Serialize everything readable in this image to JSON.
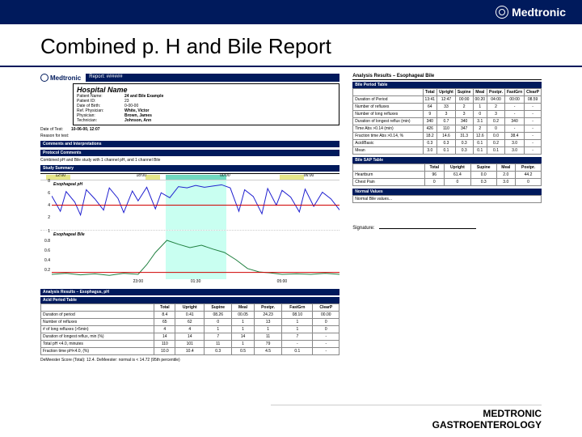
{
  "brand": "Medtronic",
  "page_title": "Combined p. H and Bile Report",
  "report_type": "Report: ######",
  "hospital_name": "Hospital Name",
  "patient": {
    "name_lbl": "Patient Name:",
    "name": "24 and Bile Example",
    "id_lbl": "Patient ID:",
    "id": "23",
    "dob_lbl": "Date of Birth:",
    "dob": "0-00-00",
    "ref_lbl": "Ref. Physician:",
    "ref": "White, Victor",
    "phys_lbl": "Physician:",
    "phys": "Brown, James",
    "tech_lbl": "Technician:",
    "tech": "Johnson, Ann"
  },
  "test_date_lbl": "Date of Test:",
  "reason_lbl": "Reason for test:",
  "test_date": "10-06-00, 12:07",
  "sections": {
    "comments": "Comments and Interpretations",
    "protocol": "Protocol Comments",
    "protocol_txt": "Combined pH and Bile study with 1 channel pH, and 1 channel Bile",
    "summary": "Study Summary",
    "analysis": "Analysis Results – Esophagus, pH"
  },
  "timeline": {
    "labels": [
      "12:00",
      "18:00",
      "00:00",
      "06:00"
    ],
    "positions_pct": [
      5,
      32,
      60,
      88
    ],
    "segments": [
      {
        "color": "#e6e68a",
        "left_pct": 2,
        "width_pct": 8
      },
      {
        "color": "#e6e68a",
        "left_pct": 35,
        "width_pct": 5
      },
      {
        "color": "#70d8c0",
        "left_pct": 42,
        "width_pct": 20
      },
      {
        "color": "#e6e68a",
        "left_pct": 80,
        "width_pct": 8
      }
    ]
  },
  "ph_chart": {
    "label": "Esophageal pH",
    "ylim": [
      0,
      8
    ],
    "yticks": [
      8,
      6,
      4,
      2
    ],
    "threshold_y": 4,
    "threshold_color": "#d00000",
    "line_color": "#2020d0",
    "highlight": {
      "left_pct": 42,
      "width_pct": 20
    },
    "points": [
      [
        0,
        5.5
      ],
      [
        3,
        3.0
      ],
      [
        5,
        6.2
      ],
      [
        8,
        4.5
      ],
      [
        10,
        2.4
      ],
      [
        12,
        6.5
      ],
      [
        15,
        5.0
      ],
      [
        18,
        3.2
      ],
      [
        20,
        6.8
      ],
      [
        23,
        5.1
      ],
      [
        25,
        2.8
      ],
      [
        28,
        6.3
      ],
      [
        30,
        4.7
      ],
      [
        33,
        6.9
      ],
      [
        36,
        3.4
      ],
      [
        38,
        6.0
      ],
      [
        41,
        5.2
      ],
      [
        44,
        7.0
      ],
      [
        47,
        6.8
      ],
      [
        50,
        7.2
      ],
      [
        53,
        6.9
      ],
      [
        56,
        7.1
      ],
      [
        59,
        7.3
      ],
      [
        62,
        6.8
      ],
      [
        65,
        3.0
      ],
      [
        67,
        6.5
      ],
      [
        70,
        5.4
      ],
      [
        73,
        2.6
      ],
      [
        75,
        6.7
      ],
      [
        78,
        4.0
      ],
      [
        80,
        6.4
      ],
      [
        83,
        5.3
      ],
      [
        86,
        2.9
      ],
      [
        88,
        6.6
      ],
      [
        91,
        3.8
      ],
      [
        94,
        6.1
      ],
      [
        97,
        5.0
      ],
      [
        100,
        3.2
      ]
    ]
  },
  "bile_chart": {
    "label": "Esophageal Bile",
    "ylim": [
      0,
      1
    ],
    "yticks": [
      1.0,
      0.8,
      0.6,
      0.4,
      0.2
    ],
    "threshold_y": 0.14,
    "threshold_color": "#d00000",
    "line_color": "#208040",
    "highlight": {
      "left_pct": 42,
      "width_pct": 20
    },
    "x_labels": [
      "23:00",
      "01:30",
      "05:00"
    ],
    "x_positions_pct": [
      30,
      50,
      80
    ],
    "points": [
      [
        0,
        0.1
      ],
      [
        5,
        0.12
      ],
      [
        10,
        0.09
      ],
      [
        15,
        0.11
      ],
      [
        20,
        0.08
      ],
      [
        25,
        0.12
      ],
      [
        30,
        0.1
      ],
      [
        33,
        0.3
      ],
      [
        36,
        0.55
      ],
      [
        40,
        0.8
      ],
      [
        44,
        0.72
      ],
      [
        48,
        0.65
      ],
      [
        52,
        0.7
      ],
      [
        56,
        0.62
      ],
      [
        60,
        0.55
      ],
      [
        64,
        0.4
      ],
      [
        68,
        0.22
      ],
      [
        72,
        0.15
      ],
      [
        76,
        0.13
      ],
      [
        80,
        0.1
      ],
      [
        85,
        0.11
      ],
      [
        90,
        0.1
      ],
      [
        95,
        0.12
      ],
      [
        100,
        0.1
      ]
    ]
  },
  "acid_table": {
    "title": "Acid Period Table",
    "cols": [
      "",
      "Total",
      "Upright",
      "Supine",
      "Meal",
      "Postpr.",
      "FastGrn",
      "ClearP"
    ],
    "rows": [
      [
        "Duration of period",
        "8.4",
        "0.41",
        "08.26",
        "00.05",
        "24.23",
        "08.10",
        "00.00"
      ],
      [
        "Number of refluxes",
        "65",
        "62",
        "0",
        "1",
        "13",
        "1",
        "0"
      ],
      [
        "# of long refluxes (>5min)",
        "4",
        "4",
        "1",
        "1",
        "1",
        "1",
        "0"
      ],
      [
        "Duration of longest reflux, min (%)",
        "14",
        "14",
        "7",
        "14",
        "11",
        "7",
        "-"
      ],
      [
        "Total pH <4.0, minutes",
        "110",
        "101",
        "11",
        "1",
        "79",
        "-",
        "-"
      ],
      [
        "Fraction time pH<4.0, (%)",
        "10.0",
        "10.4",
        "0.3",
        "0.5",
        "4.5",
        "0.1",
        "-"
      ]
    ],
    "footer": "DeMeester Score (Total): 12.4. DeMeester: normal is < 14.72 (95th percentile)"
  },
  "right_title": "Analysis Results – Esophageal Bile",
  "bile_period_table": {
    "title": "Bile Period Table",
    "cols": [
      "",
      "Total",
      "Upright",
      "Supine",
      "Meal",
      "Postpr.",
      "FastGrn",
      "ClearP"
    ],
    "rows": [
      [
        "Duration of Period",
        "13:41",
        "12:47",
        "00:00",
        "00:20",
        "04:00",
        "00:00",
        "08.59"
      ],
      [
        "Number of refluxes",
        "64",
        "33",
        "2",
        "1",
        "2",
        "-",
        "-"
      ],
      [
        "Number of long refluxes",
        "9",
        "3",
        "3",
        "0",
        "3",
        "-",
        "-"
      ],
      [
        "Duration of longest reflux (min)",
        "340",
        "0.7",
        "340",
        "3.1",
        "0.2",
        "340",
        "-"
      ],
      [
        "Time Abs >0.14 (min)",
        "426",
        "110",
        "347",
        "2",
        "0",
        "-",
        "-"
      ],
      [
        "Fraction time Abs >0.14, %",
        "18.2",
        "14.6",
        "31.3",
        "12.6",
        "0.0",
        "38.4",
        "-"
      ],
      [
        "Acid/Basic",
        "0.3",
        "0.3",
        "0.3",
        "0.1",
        "0.2",
        "3.0",
        "-"
      ],
      [
        "Mean",
        "3.0",
        "0.1",
        "0.3",
        "0.1",
        "0.1",
        "3.0",
        "-"
      ]
    ]
  },
  "sap_table": {
    "title": "Bile SAP Table",
    "cols": [
      "",
      "Total",
      "Upright",
      "Supine",
      "Meal",
      "Postpr."
    ],
    "rows": [
      [
        "Heartburn",
        "96",
        "61.4",
        "0.0",
        "2.0",
        "44.2"
      ],
      [
        "Chest Pain",
        "0",
        "0",
        "0.3",
        "3.0",
        "0"
      ]
    ]
  },
  "normal_values": {
    "title": "Normal Values",
    "text": "Normal Bile values..."
  },
  "signature": "Signature: ",
  "footer1": "MEDTRONIC",
  "footer2": "GASTROENTEROLOGY"
}
